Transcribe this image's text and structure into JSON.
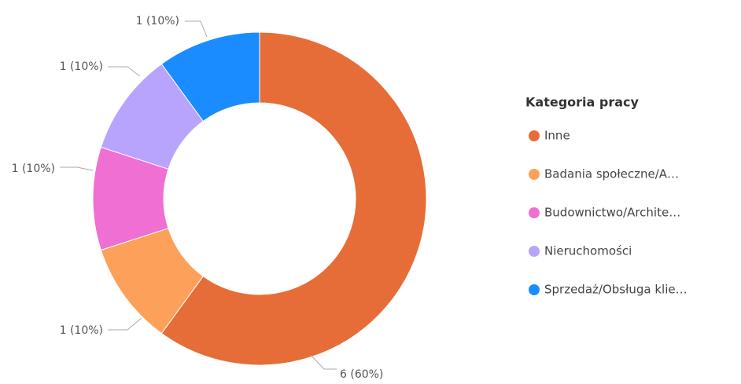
{
  "chart_data": {
    "type": "donut",
    "legend_title": "Kategoria pracy",
    "categories": [
      "Inne",
      "Badania społeczne/A…",
      "Budownictwo/Archite…",
      "Nieruchomości",
      "Sprzedaż/Obsługa klie…"
    ],
    "values": [
      6,
      1,
      1,
      1,
      1
    ],
    "value_labels": [
      "6 (60%)",
      "1 (10%)",
      "1 (10%)",
      "1 (10%)",
      "1 (10%)"
    ],
    "colors": [
      "#e66d37",
      "#fda15a",
      "#f06fd3",
      "#b8a4fd",
      "#1a8cff"
    ]
  }
}
